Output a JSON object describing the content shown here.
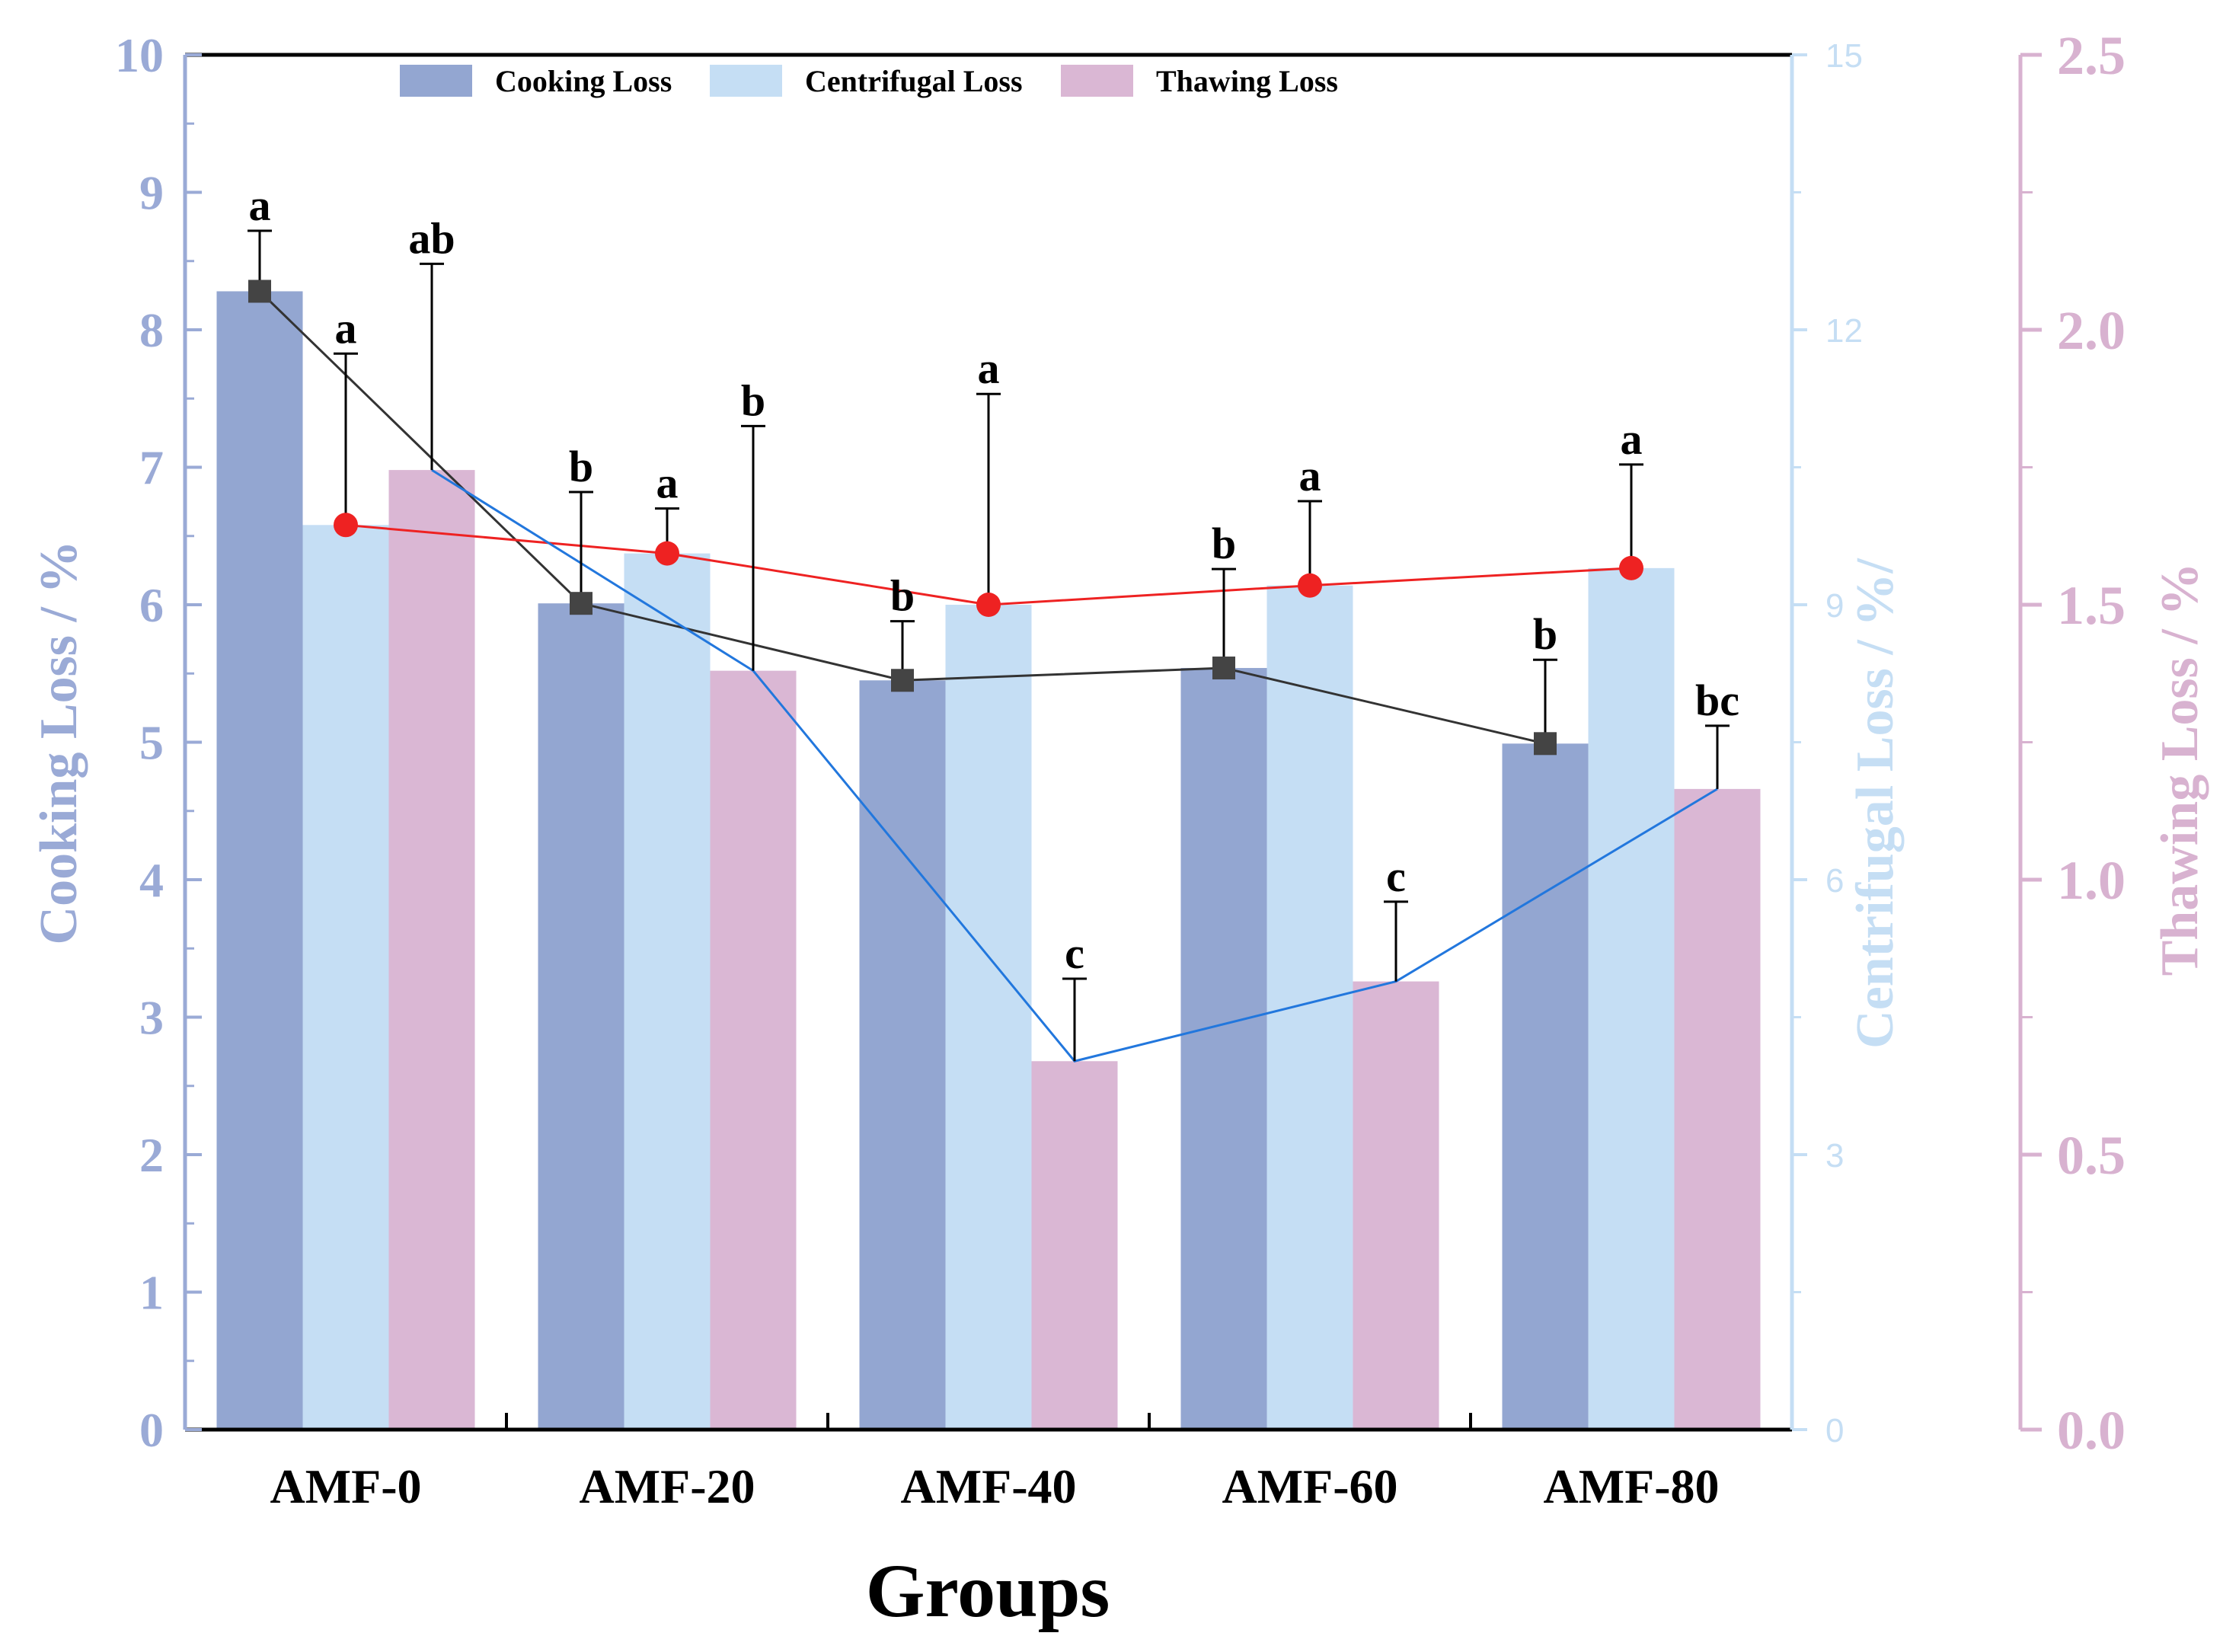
{
  "chart_data": {
    "type": "bar",
    "title": "",
    "xlabel": "Groups",
    "categories": [
      "AMF-0",
      "AMF-20",
      "AMF-40",
      "AMF-60",
      "AMF-80"
    ],
    "axes": {
      "left": {
        "label": "Cooking Loss / %",
        "ylim": [
          0,
          10
        ],
        "ticks": [
          "0",
          "1",
          "2",
          "3",
          "4",
          "5",
          "6",
          "7",
          "8",
          "9",
          "10"
        ],
        "color": "#9aaad6"
      },
      "middle": {
        "label": "Centrifugal Loss / %/",
        "ylim": [
          0,
          15
        ],
        "ticks": [
          "0",
          "3",
          "6",
          "9",
          "12",
          "15"
        ],
        "color": "#c5def4"
      },
      "right": {
        "label": "Thawing Loss / %",
        "ylim": [
          0,
          2.5
        ],
        "ticks": [
          "0.0",
          "0.5",
          "1.0",
          "1.5",
          "2.0",
          "2.5"
        ],
        "color": "#d8b2d0"
      }
    },
    "series": [
      {
        "name": "Cooking Loss",
        "axis": "left",
        "color": "#93a6d1",
        "line_color": "#333333",
        "values": [
          8.28,
          6.01,
          5.45,
          5.54,
          4.99
        ],
        "error": [
          0.44,
          0.81,
          0.43,
          0.72,
          0.61
        ],
        "letters": [
          "a",
          "b",
          "b",
          "b",
          "b"
        ]
      },
      {
        "name": "Centrifugal Loss",
        "axis": "middle",
        "color": "#c5def4",
        "line_color": "#ee2222",
        "values": [
          9.87,
          9.56,
          9.0,
          9.21,
          9.4
        ],
        "error": [
          1.87,
          0.49,
          2.3,
          0.92,
          1.13
        ],
        "letters": [
          "a",
          "a",
          "a",
          "a",
          "a"
        ]
      },
      {
        "name": "Thawing Loss",
        "axis": "right",
        "color": "#dab7d4",
        "line_color": "#2277dd",
        "values": [
          1.745,
          1.38,
          0.67,
          0.815,
          1.165
        ],
        "error": [
          0.375,
          0.445,
          0.15,
          0.145,
          0.115
        ],
        "letters": [
          "ab",
          "b",
          "c",
          "c",
          "bc"
        ]
      }
    ],
    "legend": [
      "Cooking Loss",
      "Centrifugal Loss",
      "Thawing Loss"
    ],
    "legend_position": "top-center"
  }
}
